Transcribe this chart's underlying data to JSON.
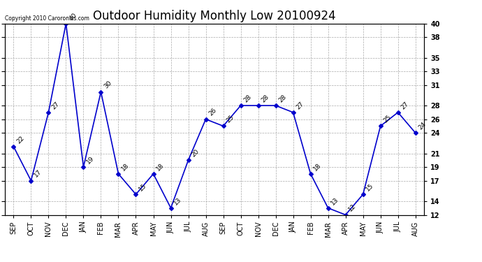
{
  "title": "Outdoor Humidity Monthly Low 20100924",
  "copyright": "Copyright 2010 Caroronics.com",
  "categories": [
    "SEP",
    "OCT",
    "NOV",
    "DEC",
    "JAN",
    "FEB",
    "MAR",
    "APR",
    "MAY",
    "JUN",
    "JUL",
    "AUG",
    "SEP",
    "OCT",
    "NOV",
    "DEC",
    "JAN",
    "FEB",
    "MAR",
    "APR",
    "MAY",
    "JUN",
    "JUL",
    "AUG"
  ],
  "values": [
    22,
    17,
    27,
    40,
    19,
    30,
    18,
    15,
    18,
    13,
    20,
    26,
    25,
    28,
    28,
    28,
    27,
    18,
    13,
    12,
    15,
    25,
    27,
    24
  ],
  "line_color": "#0000CC",
  "marker": "D",
  "marker_size": 3,
  "ylim": [
    12,
    40
  ],
  "yticks": [
    12,
    14,
    17,
    19,
    21,
    24,
    26,
    28,
    31,
    33,
    35,
    38,
    40
  ],
  "grid_color": "#aaaaaa",
  "background_color": "#ffffff",
  "title_fontsize": 12,
  "label_fontsize": 7,
  "annot_fontsize": 6.5
}
